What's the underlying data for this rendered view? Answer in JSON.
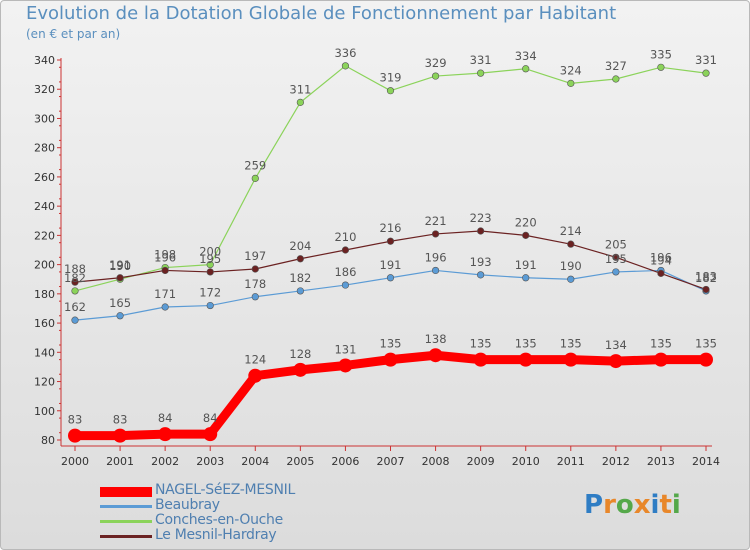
{
  "title": "Evolution de la Dotation Globale de Fonctionnement par Habitant",
  "subtitle": "(en € et par an)",
  "logo": {
    "text": "Proxiti",
    "letter_colors": [
      "#2f7dc4",
      "#e8872a",
      "#55a84a",
      "#e8872a",
      "#2f7dc4",
      "#e8872a",
      "#55a84a"
    ]
  },
  "chart_data": {
    "type": "line",
    "title": "Evolution de la Dotation Globale de Fonctionnement par Habitant",
    "ylabel": "(en € et par an)",
    "xlabel": "",
    "ylim": [
      80,
      340
    ],
    "yticks": [
      80,
      100,
      120,
      140,
      160,
      180,
      200,
      220,
      240,
      260,
      280,
      300,
      320,
      340
    ],
    "x": [
      "2000",
      "2001",
      "2002",
      "2003",
      "2004",
      "2005",
      "2006",
      "2007",
      "2008",
      "2009",
      "2010",
      "2011",
      "2012",
      "2013",
      "2014"
    ],
    "grid": false,
    "legend_position": "bottom-left",
    "series": [
      {
        "name": "NAGEL-SéEZ-MESNIL",
        "color": "#ff0000",
        "values": [
          83,
          83,
          84,
          84,
          124,
          128,
          131,
          135,
          138,
          135,
          135,
          135,
          134,
          135,
          135
        ]
      },
      {
        "name": "Beaubray",
        "color": "#5b9bd5",
        "values": [
          162,
          165,
          171,
          172,
          178,
          182,
          186,
          191,
          196,
          193,
          191,
          190,
          195,
          196,
          182
        ]
      },
      {
        "name": "Conches-en-Ouche",
        "color": "#8bd35a",
        "values": [
          182,
          190,
          198,
          200,
          259,
          311,
          336,
          319,
          329,
          331,
          334,
          324,
          327,
          335,
          331
        ]
      },
      {
        "name": "Le Mesnil-Hardray",
        "color": "#6b2222",
        "values": [
          188,
          191,
          196,
          195,
          197,
          204,
          210,
          216,
          221,
          223,
          220,
          214,
          205,
          194,
          183
        ]
      }
    ]
  }
}
